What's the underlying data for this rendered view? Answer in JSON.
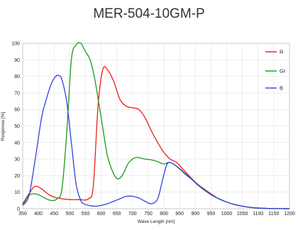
{
  "chart_data": {
    "type": "line",
    "title": "MER-504-10GM-P",
    "xlabel": "Wave Length [nm]",
    "ylabel": "Response [%]",
    "xlim": [
      350,
      1200
    ],
    "ylim": [
      0,
      100
    ],
    "xticks": [
      350,
      400,
      450,
      500,
      550,
      600,
      650,
      700,
      750,
      800,
      850,
      900,
      950,
      1000,
      1050,
      1100,
      1150,
      1200
    ],
    "yticks": [
      0,
      10,
      20,
      30,
      40,
      50,
      60,
      70,
      80,
      90,
      100
    ],
    "grid": true,
    "legend_position": "top-right",
    "series": [
      {
        "name": "R",
        "color": "#ee1c1c",
        "x": [
          350,
          370,
          385,
          395,
          410,
          430,
          450,
          470,
          500,
          530,
          560,
          575,
          590,
          605,
          620,
          640,
          660,
          680,
          700,
          720,
          740,
          760,
          780,
          800,
          820,
          840,
          860,
          880,
          900,
          920,
          950,
          975,
          1000,
          1025,
          1050,
          1075,
          1100,
          1125,
          1150,
          1175,
          1200
        ],
        "y": [
          3,
          9,
          13,
          13.5,
          12,
          9,
          7,
          6.2,
          5.5,
          5.5,
          6,
          14,
          62,
          84,
          84,
          77,
          66,
          62,
          61,
          60,
          55,
          47,
          40,
          34,
          30,
          28,
          24,
          20,
          16,
          13,
          9,
          6,
          4,
          2.5,
          1.5,
          0.8,
          0.4,
          0.2,
          0.1,
          0.05,
          0
        ]
      },
      {
        "name": "Gr",
        "color": "#1a9a1a",
        "x": [
          350,
          370,
          385,
          400,
          420,
          440,
          460,
          475,
          490,
          505,
          520,
          535,
          550,
          565,
          580,
          600,
          620,
          640,
          655,
          670,
          685,
          700,
          715,
          740,
          760,
          780,
          800,
          815,
          830,
          850,
          870,
          890,
          910,
          930,
          950,
          975,
          1000,
          1025,
          1050,
          1075,
          1100,
          1125,
          1150,
          1175,
          1200
        ],
        "y": [
          2,
          8,
          9,
          8.5,
          6.5,
          5,
          6,
          12,
          45,
          90,
          99,
          100,
          95,
          90,
          78,
          55,
          32,
          21,
          18,
          21,
          27,
          30,
          31,
          30,
          29.5,
          28.5,
          27,
          28,
          27,
          24,
          20.5,
          17.5,
          14,
          11.5,
          8.5,
          6,
          4,
          2.5,
          1.5,
          0.8,
          0.4,
          0.2,
          0.1,
          0.05,
          0
        ]
      },
      {
        "name": "B",
        "color": "#3340e0",
        "x": [
          350,
          370,
          390,
          410,
          425,
          440,
          455,
          465,
          475,
          490,
          505,
          520,
          535,
          545,
          560,
          580,
          600,
          620,
          640,
          660,
          680,
          700,
          720,
          740,
          760,
          780,
          795,
          810,
          825,
          845,
          870,
          890,
          910,
          930,
          950,
          975,
          1000,
          1025,
          1050,
          1075,
          1100,
          1125,
          1150,
          1175,
          1200
        ],
        "y": [
          2,
          8,
          30,
          55,
          66,
          75,
          80,
          80.5,
          78,
          65,
          40,
          15,
          5,
          3,
          2,
          1.5,
          2,
          3,
          4.5,
          6,
          7.5,
          7.5,
          6.5,
          4.5,
          3,
          6,
          17,
          27,
          27.5,
          25,
          21,
          17.5,
          14,
          11,
          8.5,
          6,
          4,
          2.5,
          1.5,
          0.8,
          0.4,
          0.2,
          0.1,
          0.05,
          0
        ]
      }
    ]
  }
}
